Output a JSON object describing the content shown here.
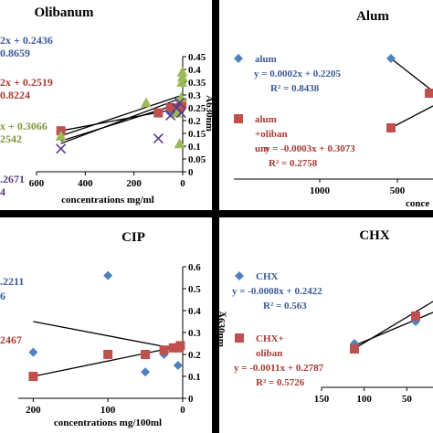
{
  "chart_data": [
    {
      "type": "scatter",
      "title": "Olibanum",
      "xlabel": "concentrations mg/ml",
      "ylabel": "A̅630nm",
      "x_reversed": true,
      "xlim": [
        0,
        600
      ],
      "ylim": [
        0,
        0.45
      ],
      "xticks": [
        "600",
        "400",
        "200",
        "0"
      ],
      "yticks": [
        "0",
        "0.05",
        "0.1",
        "0.15",
        "0.2",
        "0.25",
        "0.3",
        "0.35",
        "0.4",
        "0.45"
      ],
      "annotations": [
        {
          "text": "2x + 0.2436",
          "color": "#3c5a96"
        },
        {
          "text": "0.8659",
          "color": "#3c5a96"
        },
        {
          "text": "2x + 0.2519",
          "color": "#a63a36"
        },
        {
          "text": "0.8224",
          "color": "#a63a36"
        },
        {
          "text": "x + 0.3066",
          "color": "#7a9a3a"
        },
        {
          "text": "2542",
          "color": "#7a9a3a"
        },
        {
          "text": ".2671",
          "color": "#5a3c7a"
        },
        {
          "text": "4",
          "color": "#5a3c7a"
        }
      ],
      "series": [
        {
          "marker": "diamond",
          "color": "#4f81bd",
          "x": [
            500,
            50,
            25,
            12.5,
            6.25,
            3.1
          ],
          "y": [
            0.16,
            0.23,
            0.24,
            0.25,
            0.26,
            0.27
          ]
        },
        {
          "marker": "square",
          "color": "#c0504d",
          "x": [
            500,
            100,
            50,
            25,
            12.5,
            6.25,
            3.1
          ],
          "y": [
            0.16,
            0.23,
            0.25,
            0.24,
            0.25,
            0.26,
            0.27
          ]
        },
        {
          "marker": "triangle",
          "color": "#9bbb59",
          "x": [
            500,
            150,
            25,
            12.5,
            6.25,
            3.1,
            1.5,
            0.8
          ],
          "y": [
            0.14,
            0.27,
            0.23,
            0.11,
            0.29,
            0.35,
            0.39,
            0.37
          ]
        },
        {
          "marker": "x",
          "color": "#5a3c8c",
          "x": [
            500,
            100,
            50,
            25,
            12.5,
            6.25
          ],
          "y": [
            0.09,
            0.13,
            0.22,
            0.25,
            0.27,
            0.23
          ]
        }
      ],
      "trendlines": [
        {
          "from": [
            500,
            0.14
          ],
          "to": [
            0,
            0.3
          ]
        },
        {
          "from": [
            500,
            0.12
          ],
          "to": [
            0,
            0.27
          ]
        },
        {
          "from": [
            500,
            0.16
          ],
          "to": [
            0,
            0.25
          ]
        },
        {
          "from": [
            500,
            0.11
          ],
          "to": [
            0,
            0.29
          ]
        }
      ]
    },
    {
      "type": "scatter",
      "title": "Alum",
      "xlabel": "conce",
      "x_reversed": true,
      "xlim": [
        0,
        1000
      ],
      "xticks": [
        "1000",
        "500"
      ],
      "legend": [
        {
          "marker": "diamond",
          "color": "#4f81bd",
          "label": "alum",
          "eq": "y = 0.0002x + 0.2205",
          "r2": "R² = 0.8438"
        },
        {
          "marker": "square",
          "color": "#c0504d",
          "label": "alum +oliban um",
          "eq": "y = -0.0003x + 0.3073",
          "r2": "R² = 0.2758"
        }
      ],
      "points": [
        {
          "marker": "diamond",
          "color": "#4f81bd",
          "x": 400,
          "pos": "upper"
        },
        {
          "marker": "square",
          "color": "#c0504d",
          "x": 400,
          "pos": "lower"
        },
        {
          "marker": "square",
          "color": "#c0504d",
          "x": 50,
          "pos": "middle"
        }
      ]
    },
    {
      "type": "scatter",
      "title": "CIP",
      "xlabel": "concentrations mg/100ml",
      "ylabel": "A̅630nm",
      "x_reversed": true,
      "xlim": [
        0,
        200
      ],
      "ylim": [
        0,
        0.6
      ],
      "xticks": [
        "200",
        "100",
        "0"
      ],
      "yticks": [
        "0",
        "0.1",
        "0.2",
        "0.3",
        "0.4",
        "0.5",
        "0.6"
      ],
      "annotations": [
        {
          "text": ".2211",
          "color": "#3c5a96"
        },
        {
          "text": "6",
          "color": "#3c5a96"
        },
        {
          "text": "2467",
          "color": "#a63a36"
        }
      ],
      "series": [
        {
          "marker": "diamond",
          "color": "#4f81bd",
          "x": [
            200,
            100,
            50,
            25,
            12.5,
            6.25
          ],
          "y": [
            0.21,
            0.56,
            0.12,
            0.2,
            0.23,
            0.15
          ]
        },
        {
          "marker": "square",
          "color": "#c0504d",
          "x": [
            200,
            100,
            50,
            25,
            12.5,
            6.25,
            3.1
          ],
          "y": [
            0.1,
            0.2,
            0.2,
            0.22,
            0.23,
            0.23,
            0.24
          ]
        }
      ],
      "trendlines": [
        {
          "from": [
            200,
            0.35
          ],
          "to": [
            0,
            0.22
          ]
        },
        {
          "from": [
            200,
            0.1
          ],
          "to": [
            0,
            0.24
          ]
        }
      ]
    },
    {
      "type": "scatter",
      "title": "CHX",
      "xticks": [
        "150",
        "100",
        "50"
      ],
      "x_reversed": true,
      "xlim": [
        0,
        150
      ],
      "legend": [
        {
          "marker": "diamond",
          "color": "#4f81bd",
          "label": "CHX",
          "eq": "y = -0.0008x + 0.2422",
          "r2": "R² = 0.563"
        },
        {
          "marker": "square",
          "color": "#c0504d",
          "label": "CHX+ oliban",
          "eq": "y = -0.0011x + 0.2787",
          "r2": "R² = 0.5726"
        }
      ],
      "points": [
        {
          "marker": "diamond",
          "color": "#4f81bd",
          "x": 120,
          "pos": "a"
        },
        {
          "marker": "square",
          "color": "#c0504d",
          "x": 120,
          "pos": "b"
        },
        {
          "marker": "diamond",
          "color": "#4f81bd",
          "x": 55,
          "pos": "c"
        },
        {
          "marker": "square",
          "color": "#c0504d",
          "x": 55,
          "pos": "d"
        }
      ]
    }
  ]
}
